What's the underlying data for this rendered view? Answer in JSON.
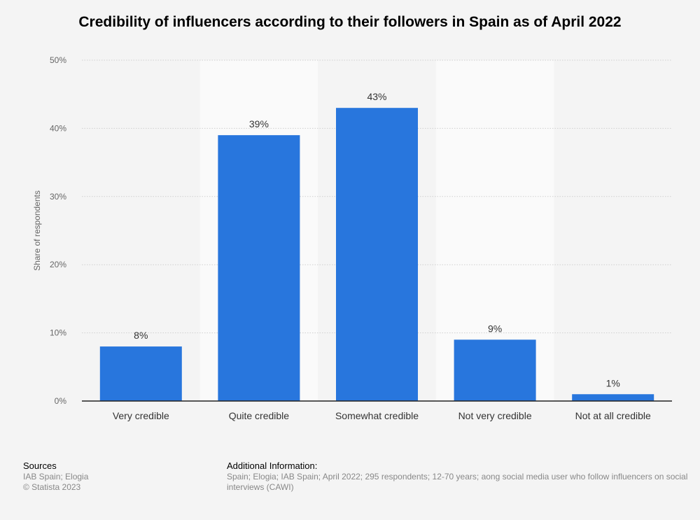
{
  "title": "Credibility of influencers according to their followers in Spain as of April 2022",
  "chart_data": {
    "type": "bar",
    "categories": [
      "Very credible",
      "Quite credible",
      "Somewhat credible",
      "Not very credible",
      "Not at all credible"
    ],
    "values": [
      8,
      39,
      43,
      9,
      1
    ],
    "value_labels": [
      "8%",
      "39%",
      "43%",
      "9%",
      "1%"
    ],
    "ylabel": "Share of respondents",
    "ylim": [
      0,
      50
    ],
    "yticks": [
      0,
      10,
      20,
      30,
      40,
      50
    ],
    "ytick_labels": [
      "0%",
      "10%",
      "20%",
      "30%",
      "40%",
      "50%"
    ],
    "grid": true,
    "bar_color": "#2876dd"
  },
  "footer": {
    "sources_heading": "Sources",
    "sources_line1": "IAB Spain; Elogia",
    "sources_line2": "© Statista 2023",
    "additional_heading": "Additional Information:",
    "additional_line1": "Spain; Elogia; IAB Spain; April 2022; 295 respondents; 12-70 years; aong social media user who follow influencers on social",
    "additional_line2": "interviews (CAWI)"
  }
}
